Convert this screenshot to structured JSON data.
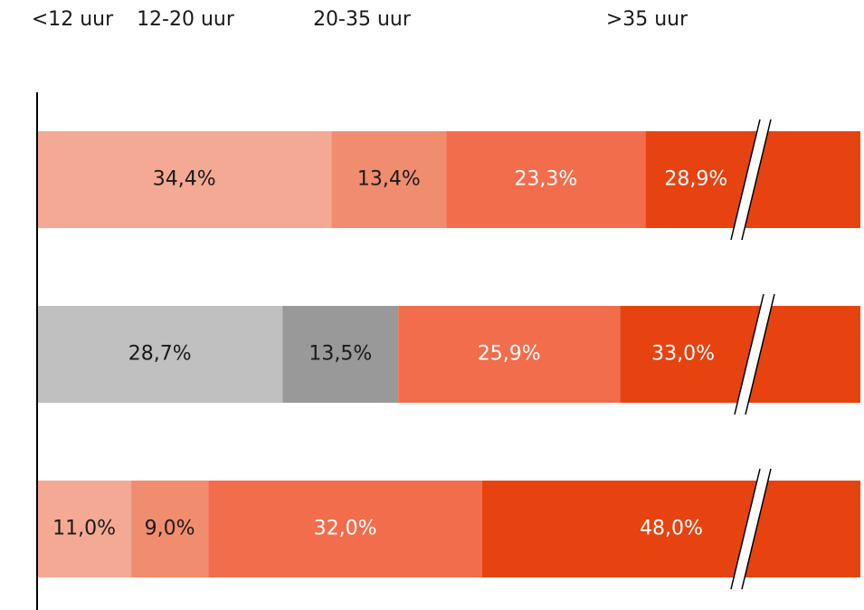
{
  "chart_data": {
    "type": "stacked-bar-horizontal",
    "categories": [
      null,
      null,
      null
    ],
    "series": [
      {
        "name": "<12 uur",
        "color": "#f4a994",
        "colors": [
          "#f4a994",
          "#c0c0c0",
          "#f4a994"
        ],
        "values": [
          34.4,
          28.7,
          11.0
        ],
        "value_labels": [
          "34,4%",
          "28,7%",
          "11,0%"
        ]
      },
      {
        "name": "12-20 uur",
        "color": "#f08d6e",
        "colors": [
          "#f08d6e",
          "#999999",
          "#f08d6e"
        ],
        "values": [
          13.4,
          13.5,
          9.0
        ],
        "value_labels": [
          "13,4%",
          "13,5%",
          "9,0%"
        ]
      },
      {
        "name": "20-35 uur",
        "color": "#f26d4b",
        "values": [
          23.3,
          25.9,
          32.0
        ],
        "value_labels": [
          "23,3%",
          "25,9%",
          "32,0%"
        ]
      },
      {
        "name": ">35 uur",
        "color": "#e64311",
        "values": [
          28.9,
          33.0,
          48.0
        ],
        "value_labels": [
          "28,9%",
          "33,0%",
          "48,0%"
        ]
      }
    ]
  }
}
